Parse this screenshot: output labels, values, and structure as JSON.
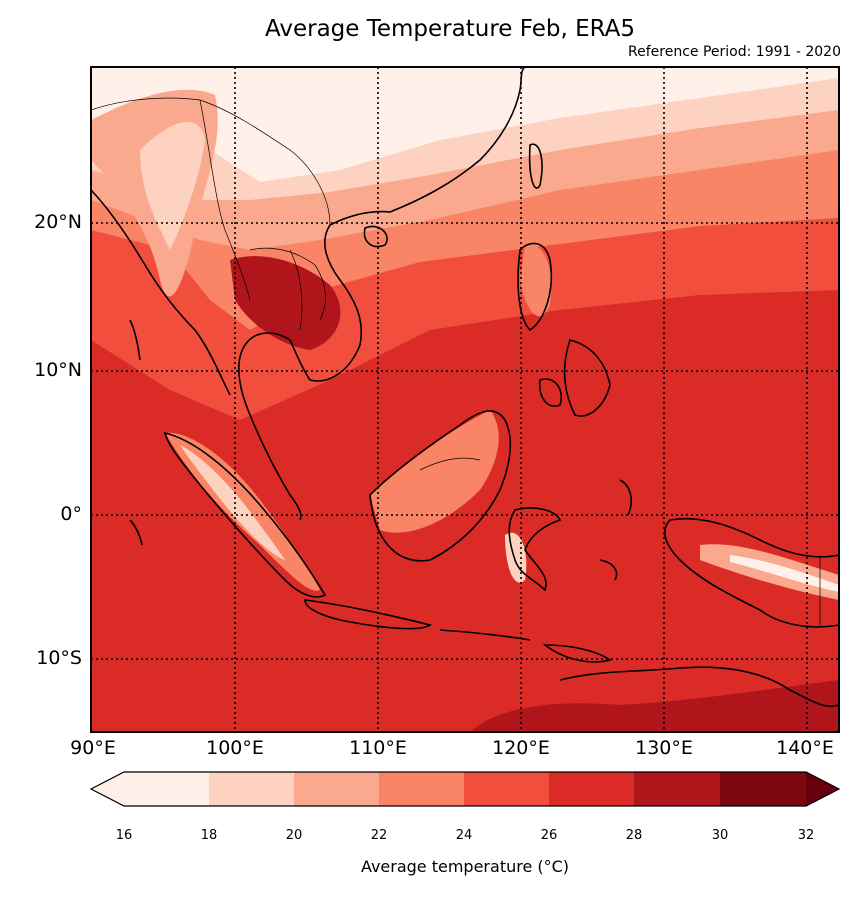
{
  "title": "Average Temperature Feb, ERA5",
  "subtitle": "Reference Period: 1991 - 2020",
  "map": {
    "region": "Southeast Asia",
    "lat_range": [
      -15,
      31
    ],
    "lon_range": [
      90,
      142.5
    ],
    "lat_labels": [
      "20°N",
      "10°N",
      "0°",
      "10°S"
    ],
    "lon_labels": [
      "90°E",
      "100°E",
      "110°E",
      "120°E",
      "130°E",
      "140°E"
    ],
    "gridlines": "dotted"
  },
  "colorbar": {
    "label": "Average temperature (°C)",
    "ticks": [
      "16",
      "18",
      "20",
      "22",
      "24",
      "26",
      "28",
      "30",
      "32"
    ],
    "colors": [
      "#fff0ea",
      "#fdd2c0",
      "#fba98e",
      "#f98466",
      "#f14e3d",
      "#db2b26",
      "#b1151c",
      "#7d0710"
    ],
    "extend": "both"
  }
}
